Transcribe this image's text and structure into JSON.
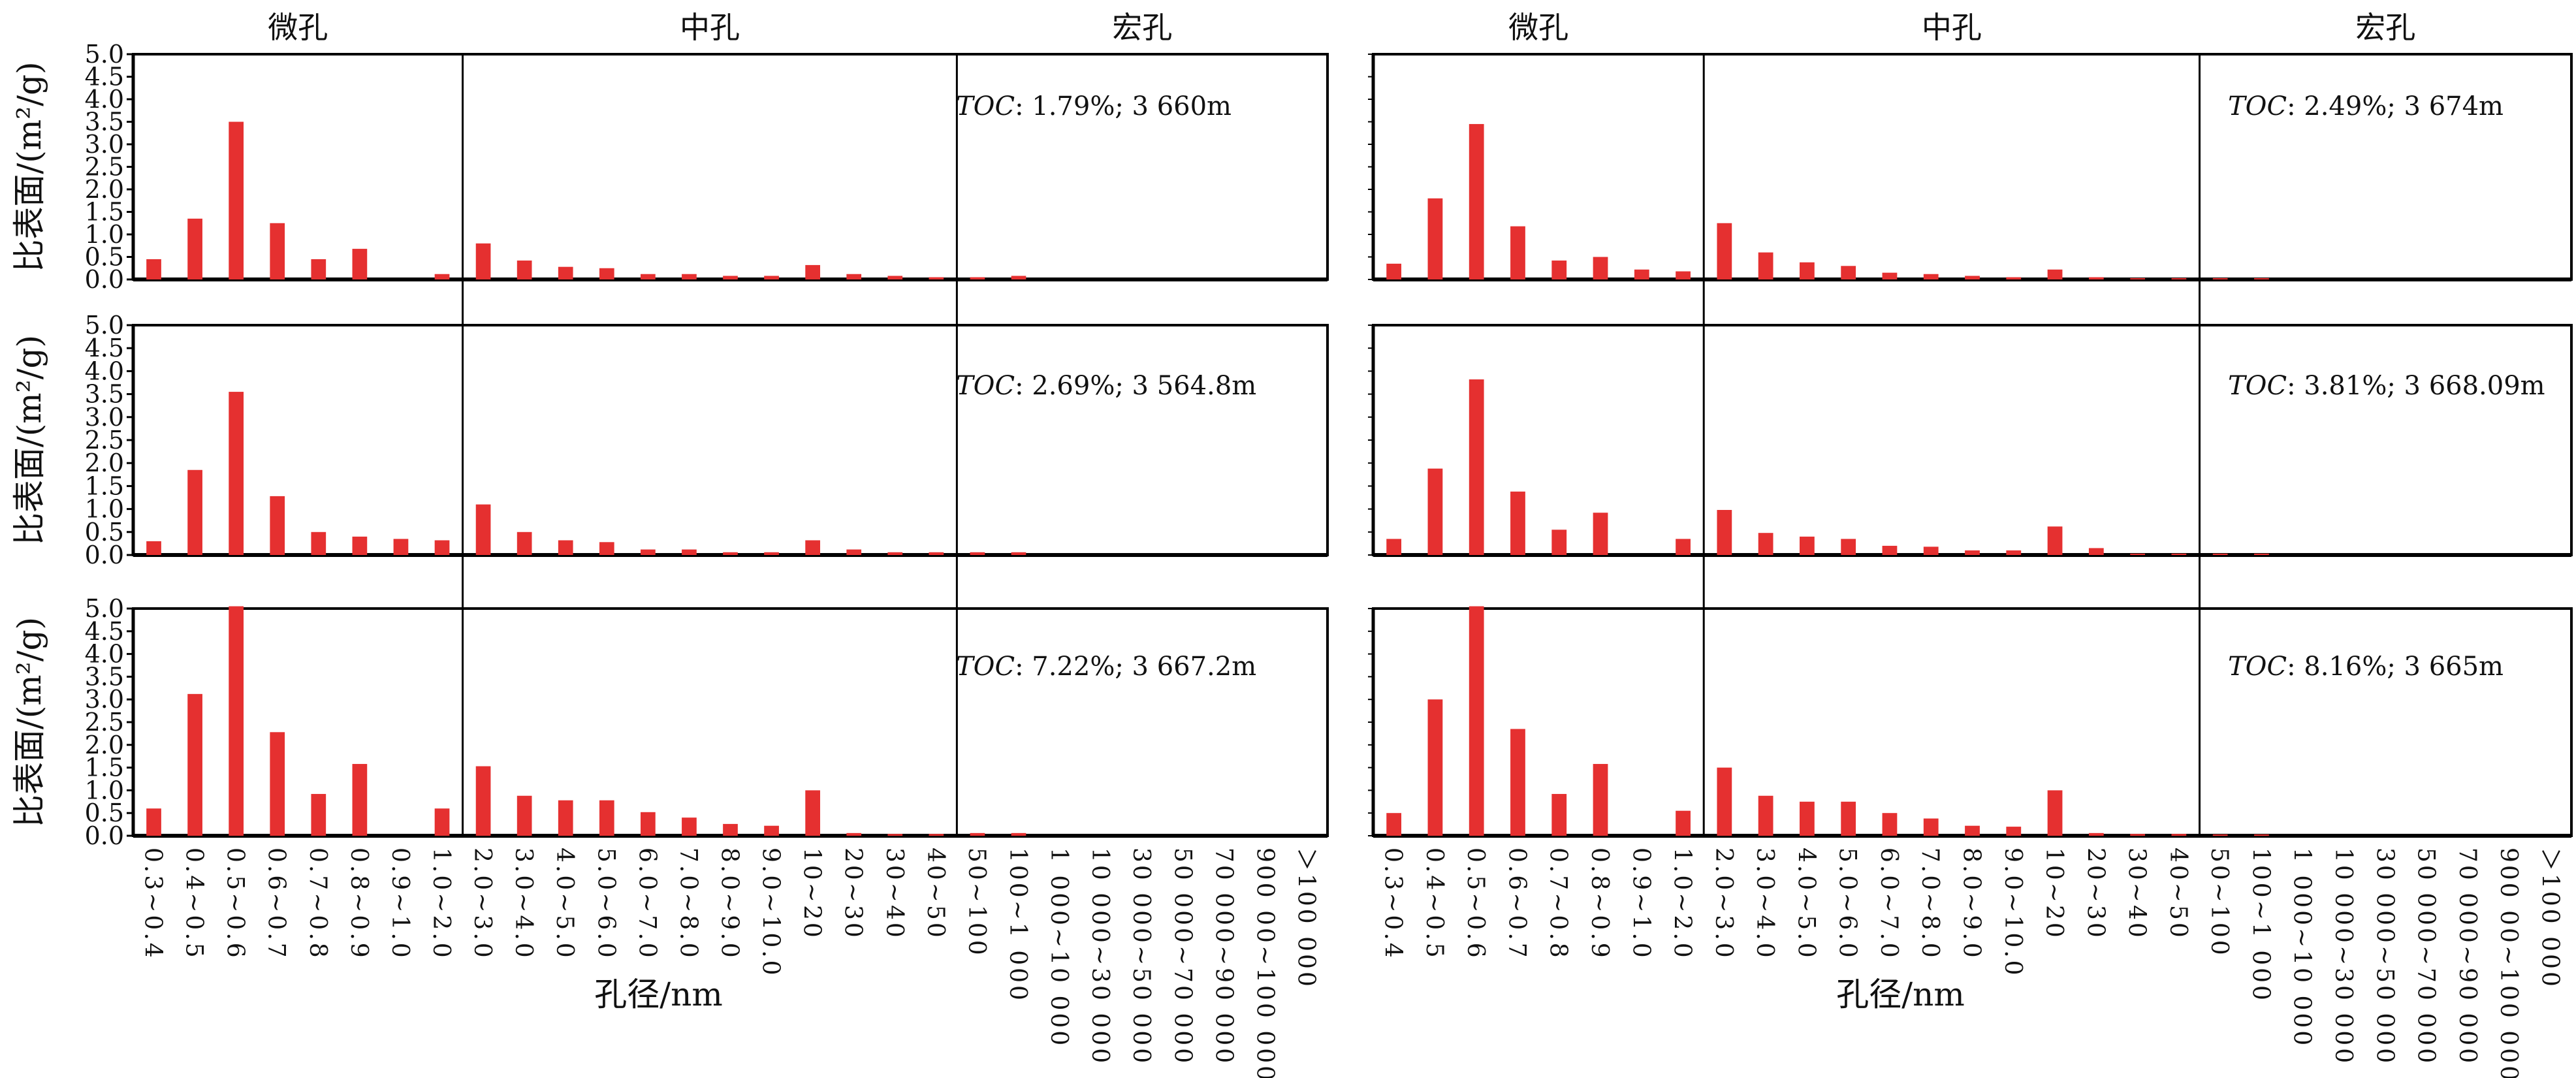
{
  "bar_color": "#e53030",
  "chart_data": [
    {
      "type": "bar",
      "group_headers": [
        "微孔",
        "中孔",
        "宏孔"
      ],
      "xlabel": "孔径/nm",
      "ylabel": "比表面/(m²/g)",
      "ylim": [
        0,
        5.0
      ],
      "yticks": [
        "0.0",
        "0.5",
        "1.0",
        "1.5",
        "2.0",
        "2.5",
        "3.0",
        "3.5",
        "4.0",
        "4.5",
        "5.0"
      ],
      "categories": [
        "0.3~0.4",
        "0.4~0.5",
        "0.5~0.6",
        "0.6~0.7",
        "0.7~0.8",
        "0.8~0.9",
        "0.9~1.0",
        "1.0~2.0",
        "2.0~3.0",
        "3.0~4.0",
        "4.0~5.0",
        "5.0~6.0",
        "6.0~7.0",
        "7.0~8.0",
        "8.0~9.0",
        "9.0~10.0",
        "10~20",
        "20~30",
        "30~40",
        "40~50",
        "50~100",
        "100~1 000",
        "1 000~10 000",
        "10 000~30 000",
        "30 000~50 000",
        "50 000~70 000",
        "70 000~90 000",
        "900 00~100 000",
        "＞100 000"
      ],
      "panels": [
        {
          "toc_label": "TOC",
          "annotation": ": 1.79%; 3 660m",
          "values": [
            0.45,
            1.35,
            3.5,
            1.25,
            0.45,
            0.68,
            0,
            0.12,
            0.8,
            0.42,
            0.28,
            0.25,
            0.12,
            0.12,
            0.08,
            0.08,
            0.32,
            0.12,
            0.08,
            0.05,
            0.05,
            0.08,
            0,
            0,
            0,
            0,
            0,
            0,
            0
          ]
        },
        {
          "toc_label": "TOC",
          "annotation": ": 2.69%; 3 564.8m",
          "values": [
            0.3,
            1.85,
            3.55,
            1.28,
            0.5,
            0.4,
            0.35,
            0.32,
            1.1,
            0.5,
            0.32,
            0.28,
            0.12,
            0.12,
            0.06,
            0.06,
            0.32,
            0.12,
            0.06,
            0.06,
            0.06,
            0.06,
            0,
            0,
            0,
            0,
            0,
            0,
            0
          ]
        },
        {
          "toc_label": "TOC",
          "annotation": ": 7.22%; 3 667.2m",
          "values": [
            0.6,
            3.12,
            5.05,
            2.28,
            0.92,
            1.58,
            0,
            0.6,
            1.53,
            0.88,
            0.78,
            0.78,
            0.52,
            0.4,
            0.26,
            0.22,
            1.0,
            0.06,
            0.04,
            0.04,
            0.06,
            0.06,
            0,
            0,
            0,
            0,
            0,
            0,
            0
          ]
        }
      ]
    },
    {
      "type": "bar",
      "group_headers": [
        "微孔",
        "中孔",
        "宏孔"
      ],
      "xlabel": "孔径/nm",
      "ylim": [
        0,
        5.0
      ],
      "categories": [
        "0.3~0.4",
        "0.4~0.5",
        "0.5~0.6",
        "0.6~0.7",
        "0.7~0.8",
        "0.8~0.9",
        "0.9~1.0",
        "1.0~2.0",
        "2.0~3.0",
        "3.0~4.0",
        "4.0~5.0",
        "5.0~6.0",
        "6.0~7.0",
        "7.0~8.0",
        "8.0~9.0",
        "9.0~10.0",
        "10~20",
        "20~30",
        "30~40",
        "40~50",
        "50~100",
        "100~1 000",
        "1 000~10 000",
        "10 000~30 000",
        "30 000~50 000",
        "50 000~70 000",
        "70 000~90 000",
        "900 00~100 000",
        "＞100 000"
      ],
      "panels": [
        {
          "toc_label": "TOC",
          "annotation": ": 2.49%; 3 674m",
          "values": [
            0.35,
            1.8,
            3.45,
            1.18,
            0.42,
            0.5,
            0.22,
            0.18,
            1.25,
            0.6,
            0.38,
            0.3,
            0.15,
            0.12,
            0.08,
            0.05,
            0.22,
            0.05,
            0.03,
            0.03,
            0.03,
            0.03,
            0,
            0,
            0,
            0,
            0,
            0,
            0
          ]
        },
        {
          "toc_label": "TOC",
          "annotation": ": 3.81%; 3 668.09m",
          "values": [
            0.35,
            1.88,
            3.82,
            1.38,
            0.55,
            0.92,
            0,
            0.35,
            0.98,
            0.48,
            0.4,
            0.35,
            0.2,
            0.18,
            0.1,
            0.1,
            0.62,
            0.15,
            0.03,
            0.03,
            0.03,
            0.03,
            0,
            0,
            0,
            0,
            0,
            0,
            0
          ]
        },
        {
          "toc_label": "TOC",
          "annotation": ": 8.16%; 3 665m",
          "values": [
            0.5,
            3.0,
            5.05,
            2.35,
            0.92,
            1.58,
            0,
            0.55,
            1.5,
            0.88,
            0.75,
            0.75,
            0.5,
            0.38,
            0.22,
            0.2,
            1.0,
            0.06,
            0.04,
            0.04,
            0.03,
            0.03,
            0,
            0,
            0,
            0,
            0,
            0,
            0
          ]
        }
      ]
    }
  ]
}
